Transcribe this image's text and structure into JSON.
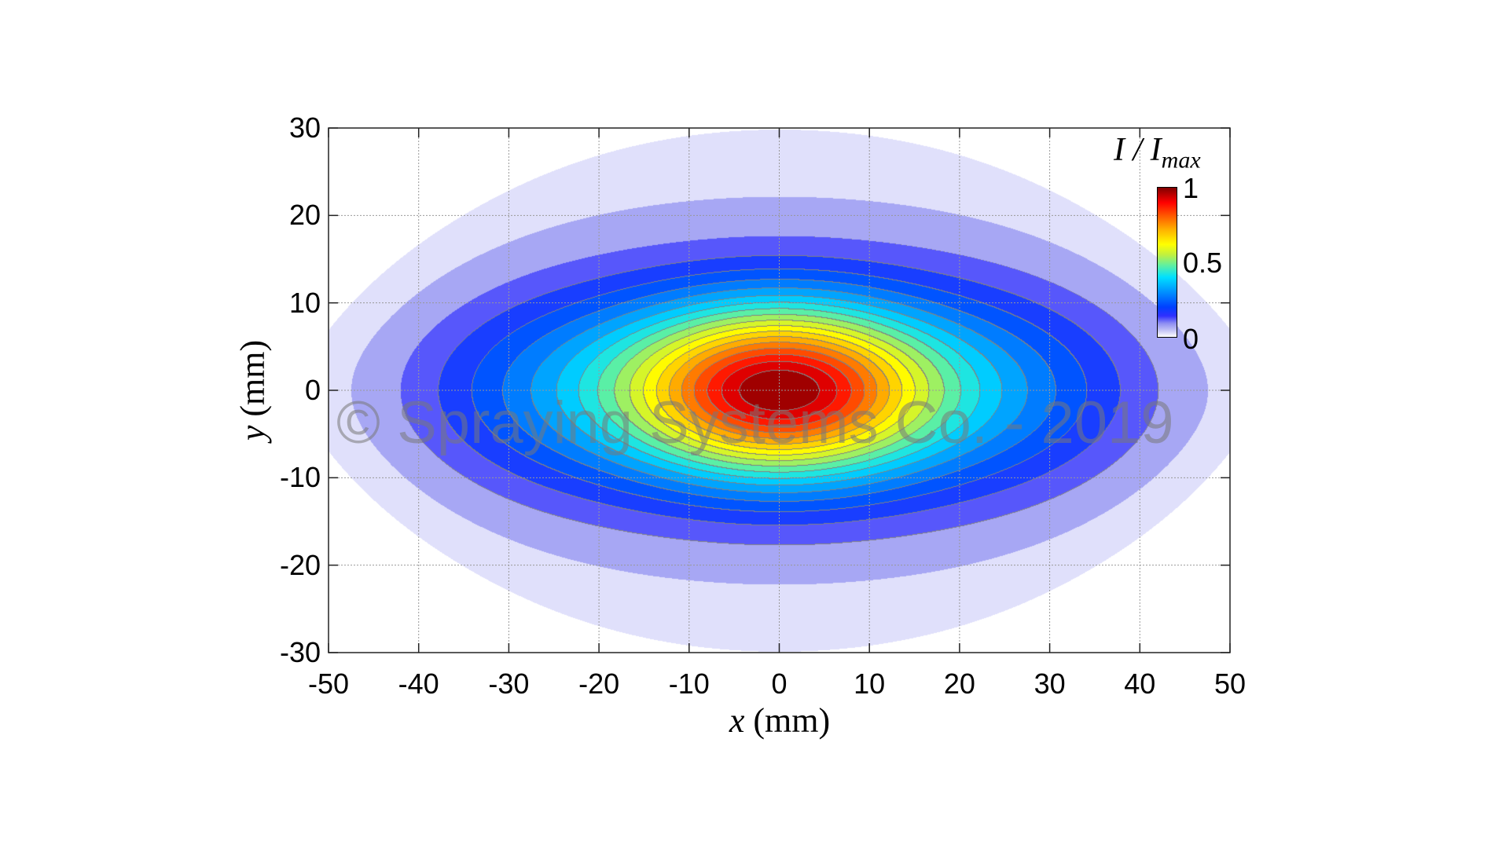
{
  "chart_data": {
    "type": "heatmap",
    "subtype": "filled-contour",
    "xlabel_var": "x",
    "xlabel_unit": "(mm)",
    "ylabel_var": "y",
    "ylabel_unit": "(mm)",
    "xlim": [
      -50,
      50
    ],
    "ylim": [
      -30,
      30
    ],
    "xticks": [
      "-50",
      "-40",
      "-30",
      "-20",
      "-10",
      "0",
      "10",
      "20",
      "30",
      "40",
      "50"
    ],
    "yticks": [
      "30",
      "20",
      "10",
      "0",
      "-10",
      "-20",
      "-30"
    ],
    "grid": true,
    "colorbar": {
      "title_main": "I / I",
      "title_sub": "max",
      "ticks": [
        "1",
        "0.5",
        "0"
      ],
      "range": [
        0,
        1
      ],
      "colormap": "jet (white at 0)",
      "placement": "top-right inside"
    },
    "peak": {
      "x": 0,
      "y": 0,
      "value": 1
    },
    "extent_at_zero": {
      "x_half_width_mm": 46,
      "y_half_height_mm": 28
    },
    "contour_levels": 20
  },
  "watermark": "© Spraying Systems Co. - 2019"
}
